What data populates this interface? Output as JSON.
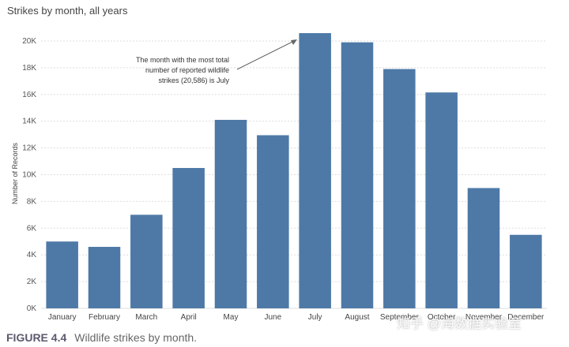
{
  "chart_data": {
    "type": "bar",
    "title": "Strikes by month, all years",
    "xlabel": "",
    "ylabel": "Number of Records",
    "ylim": [
      0,
      21000
    ],
    "yticks": [
      {
        "value": 0,
        "label": "0K"
      },
      {
        "value": 2000,
        "label": "2K"
      },
      {
        "value": 4000,
        "label": "4K"
      },
      {
        "value": 6000,
        "label": "6K"
      },
      {
        "value": 8000,
        "label": "8K"
      },
      {
        "value": 10000,
        "label": "10K"
      },
      {
        "value": 12000,
        "label": "12K"
      },
      {
        "value": 14000,
        "label": "14K"
      },
      {
        "value": 16000,
        "label": "16K"
      },
      {
        "value": 18000,
        "label": "18K"
      },
      {
        "value": 20000,
        "label": "20K"
      }
    ],
    "grid": true,
    "categories": [
      "January",
      "February",
      "March",
      "April",
      "May",
      "June",
      "July",
      "August",
      "September",
      "October",
      "November",
      "December"
    ],
    "values": [
      5000,
      4600,
      7000,
      10500,
      14100,
      12950,
      20586,
      19900,
      17900,
      16150,
      9000,
      5500
    ],
    "bar_color": "#4e79a7",
    "annotation": {
      "lines": [
        "The month with the most total",
        "number of reported wildlife",
        "strikes (20,586) is July"
      ],
      "target_category": "July",
      "target_value": 20586
    }
  },
  "caption": {
    "number": "FIGURE 4.4",
    "text": "Wildlife strikes by month."
  },
  "watermark": "知乎 @海数据实验室"
}
